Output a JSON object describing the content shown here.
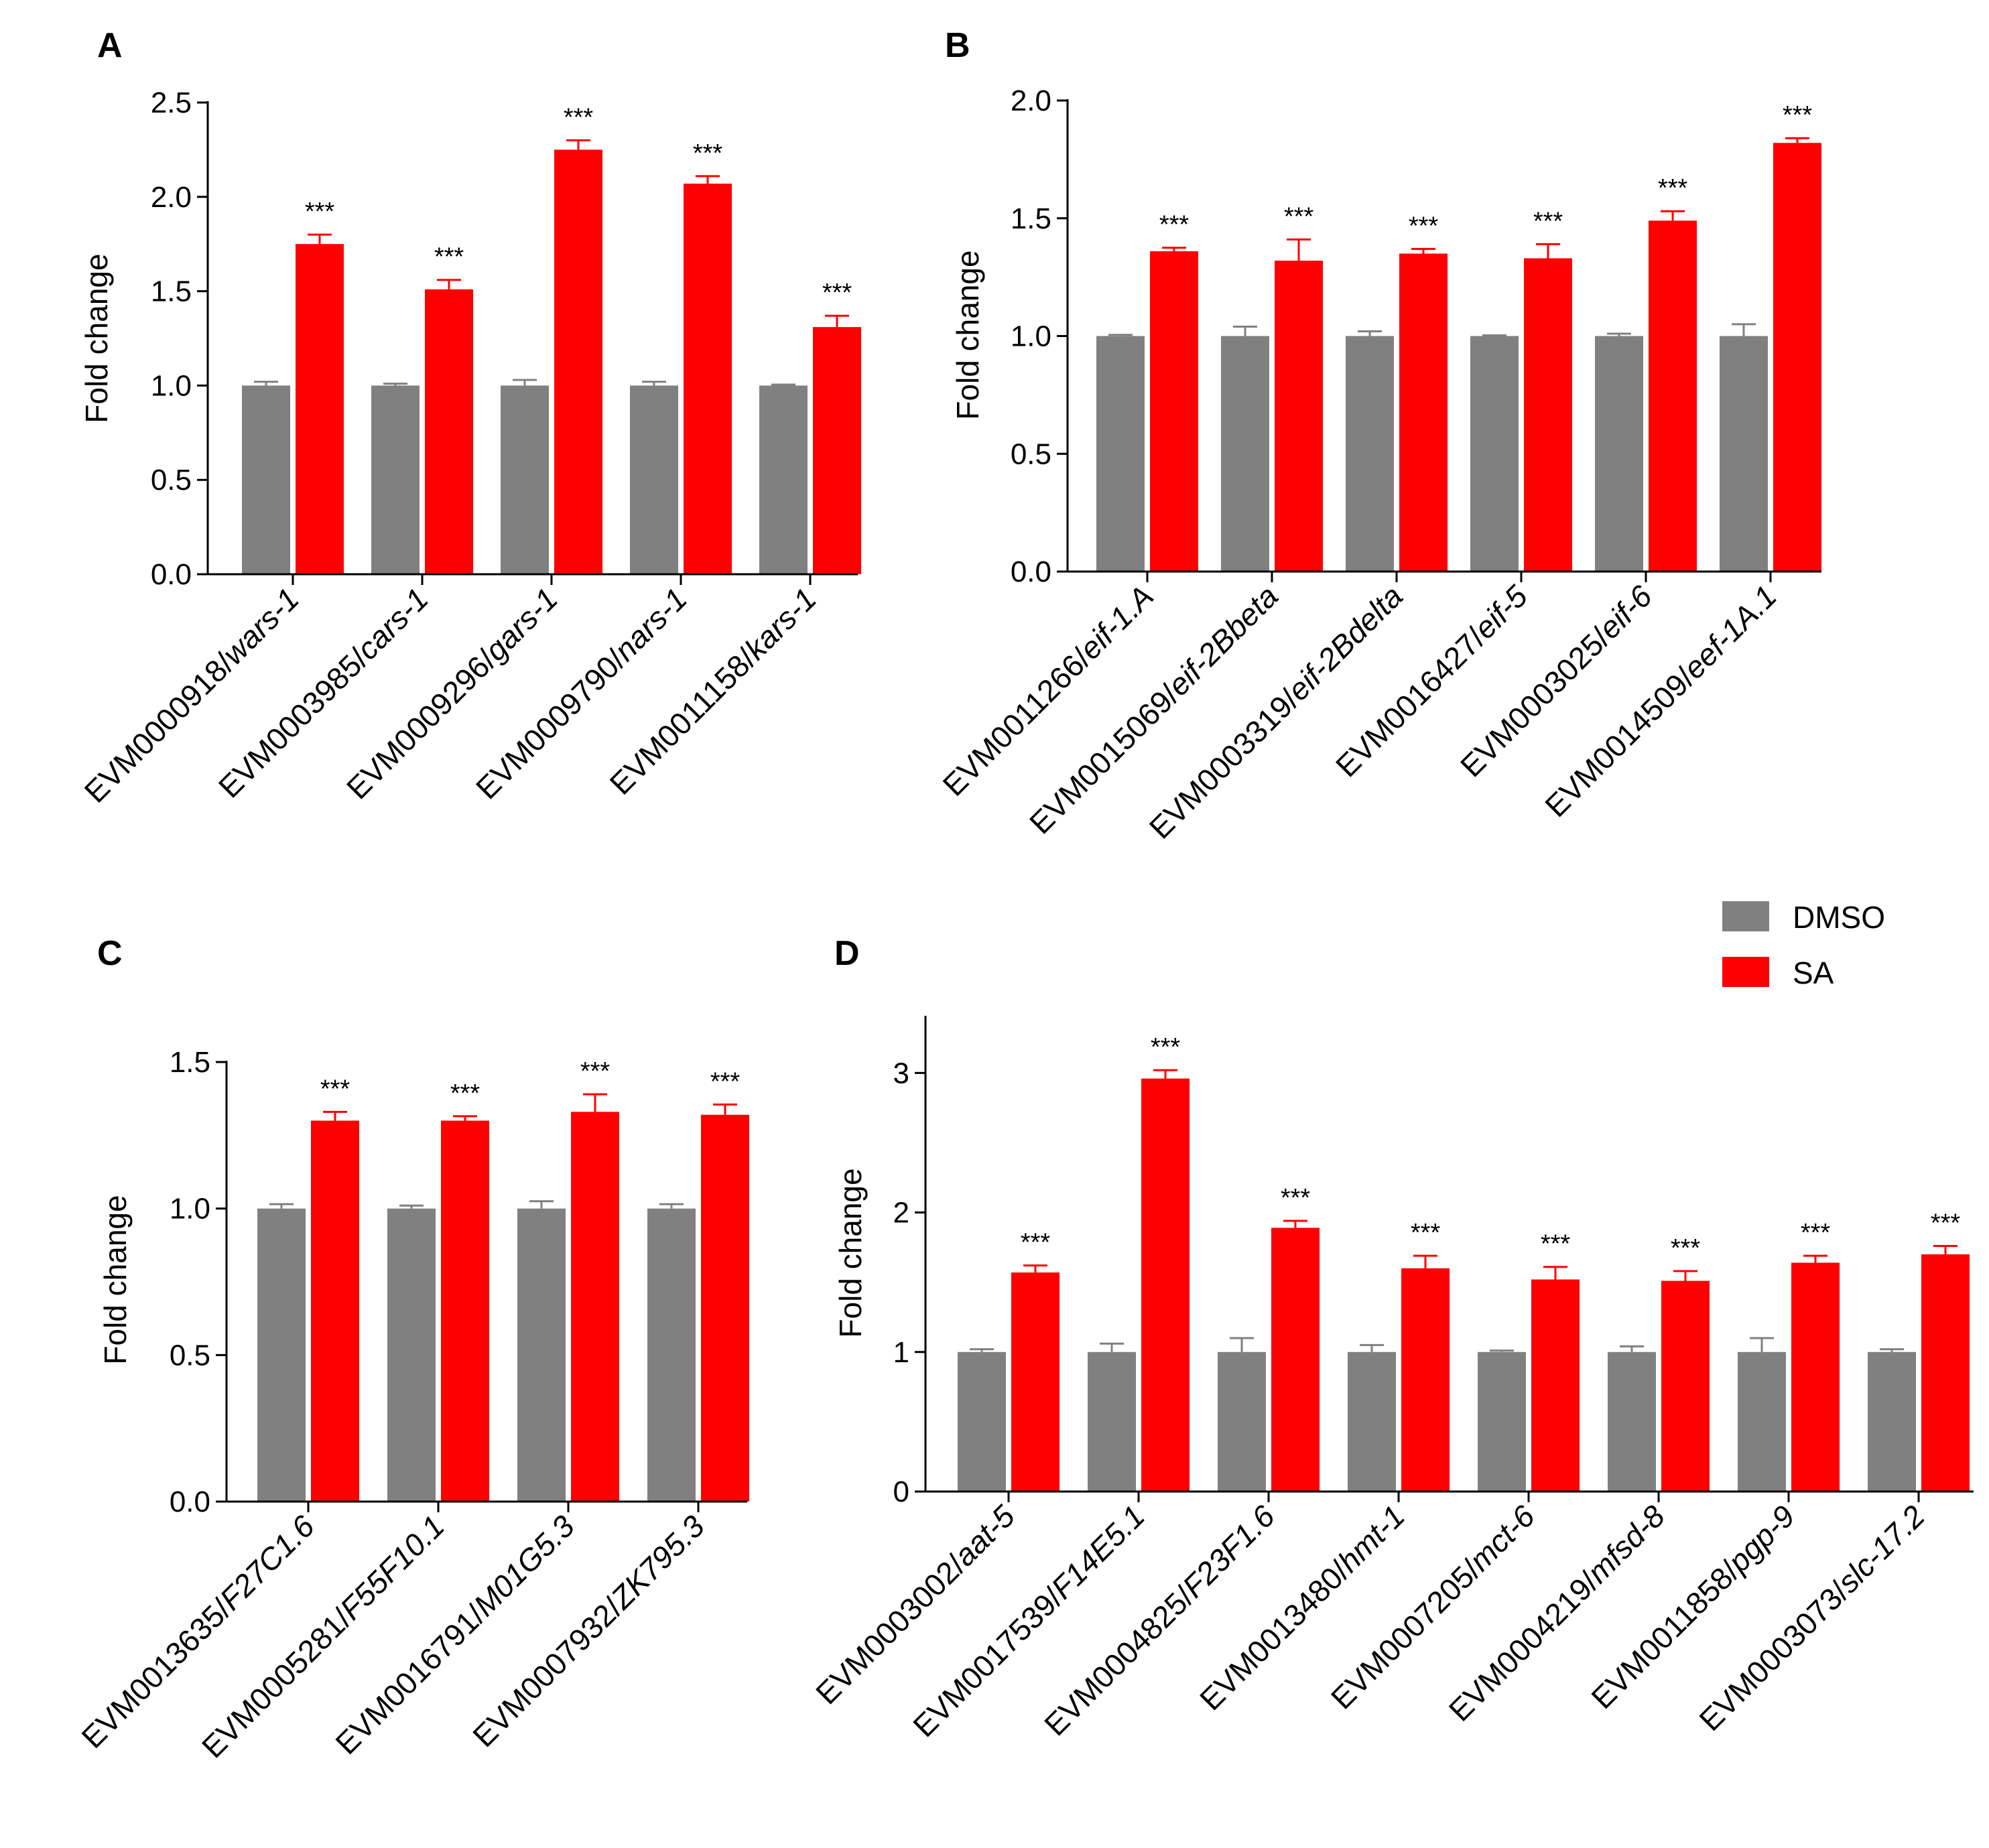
{
  "colors": {
    "DMSO": "#808080",
    "SA": "#ff0000",
    "axis": "#000000"
  },
  "legend": {
    "position": "right, between top and bottom rows",
    "items": [
      {
        "label": "DMSO",
        "color": "#808080"
      },
      {
        "label": "SA",
        "color": "#ff0000"
      }
    ]
  },
  "chart_data": [
    {
      "panel": "A",
      "type": "bar",
      "ylabel": "Fold change",
      "ylim": [
        0,
        2.5
      ],
      "yticks": [
        "0.0",
        "0.5",
        "1.0",
        "1.5",
        "2.0",
        "2.5"
      ],
      "categories": [
        {
          "id": "EVM0000918/",
          "gene": "wars-1"
        },
        {
          "id": "EVM0003985/",
          "gene": "cars-1"
        },
        {
          "id": "EVM0009296/",
          "gene": "gars-1"
        },
        {
          "id": "EVM0009790/",
          "gene": "nars-1"
        },
        {
          "id": "EVM0011158/",
          "gene": "kars-1"
        }
      ],
      "series": [
        {
          "name": "DMSO",
          "values": [
            1.0,
            1.0,
            1.0,
            1.0,
            1.0
          ],
          "errors": [
            0.02,
            0.01,
            0.03,
            0.02,
            0.005
          ]
        },
        {
          "name": "SA",
          "values": [
            1.75,
            1.51,
            2.25,
            2.07,
            1.31
          ],
          "errors": [
            0.05,
            0.05,
            0.05,
            0.04,
            0.06
          ]
        }
      ],
      "annotations": [
        "***",
        "***",
        "***",
        "***",
        "***"
      ]
    },
    {
      "panel": "B",
      "type": "bar",
      "ylabel": "Fold change",
      "ylim": [
        0,
        2.0
      ],
      "yticks": [
        "0.0",
        "0.5",
        "1.0",
        "1.5",
        "2.0"
      ],
      "categories": [
        {
          "id": "EVM0011266/",
          "gene": "eif-1.A"
        },
        {
          "id": "EVM0015069/",
          "gene": "eif-2Bbeta"
        },
        {
          "id": "EVM0003319/",
          "gene": "eif-2Bdelta"
        },
        {
          "id": "EVM0016427/",
          "gene": "eif-5"
        },
        {
          "id": "EVM0003025/",
          "gene": "eif-6"
        },
        {
          "id": "EVM0014509/",
          "gene": "eef-1A.1"
        }
      ],
      "series": [
        {
          "name": "DMSO",
          "values": [
            1.0,
            1.0,
            1.0,
            1.0,
            1.0,
            1.0
          ],
          "errors": [
            0.005,
            0.04,
            0.02,
            0.003,
            0.01,
            0.05
          ]
        },
        {
          "name": "SA",
          "values": [
            1.36,
            1.32,
            1.35,
            1.33,
            1.49,
            1.82
          ],
          "errors": [
            0.015,
            0.09,
            0.02,
            0.06,
            0.04,
            0.02
          ]
        }
      ],
      "annotations": [
        "***",
        "***",
        "***",
        "***",
        "***",
        "***"
      ]
    },
    {
      "panel": "C",
      "type": "bar",
      "ylabel": "Fold change",
      "ylim": [
        0,
        1.5
      ],
      "yticks": [
        "0.0",
        "0.5",
        "1.0",
        "1.5"
      ],
      "categories": [
        {
          "id": "EVM0013635/",
          "gene": "F27C1.6"
        },
        {
          "id": "EVM0005281/",
          "gene": "F55F10.1"
        },
        {
          "id": "EVM0016791/",
          "gene": "M01G5.3"
        },
        {
          "id": "EVM0007932/",
          "gene": "ZK795.3"
        }
      ],
      "series": [
        {
          "name": "DMSO",
          "values": [
            1.0,
            1.0,
            1.0,
            1.0
          ],
          "errors": [
            0.015,
            0.01,
            0.025,
            0.015
          ]
        },
        {
          "name": "SA",
          "values": [
            1.3,
            1.3,
            1.33,
            1.32
          ],
          "errors": [
            0.03,
            0.015,
            0.06,
            0.035
          ]
        }
      ],
      "annotations": [
        "***",
        "***",
        "***",
        "***"
      ]
    },
    {
      "panel": "D",
      "type": "bar",
      "ylabel": "Fold change",
      "ylim": [
        0,
        3.4
      ],
      "yticks": [
        "0",
        "1",
        "2",
        "3"
      ],
      "categories": [
        {
          "id": "EVM0003002/",
          "gene": "aat-5"
        },
        {
          "id": "EVM0017539/",
          "gene": "F14E5.1"
        },
        {
          "id": "EVM0004825/",
          "gene": "F23F1.6"
        },
        {
          "id": "EVM0013480/",
          "gene": "hmt-1"
        },
        {
          "id": "EVM0007205/",
          "gene": "mct-6"
        },
        {
          "id": "EVM0004219/",
          "gene": "mfsd-8"
        },
        {
          "id": "EVM0011858/",
          "gene": "pgp-9"
        },
        {
          "id": "EVM0003073/",
          "gene": "slc-17.2"
        }
      ],
      "series": [
        {
          "name": "DMSO",
          "values": [
            1.0,
            1.0,
            1.0,
            1.0,
            1.0,
            1.0,
            1.0,
            1.0
          ],
          "errors": [
            0.02,
            0.06,
            0.1,
            0.05,
            0.01,
            0.04,
            0.1,
            0.02
          ]
        },
        {
          "name": "SA",
          "values": [
            1.57,
            2.96,
            1.89,
            1.6,
            1.52,
            1.51,
            1.64,
            1.7
          ],
          "errors": [
            0.05,
            0.06,
            0.05,
            0.09,
            0.09,
            0.07,
            0.05,
            0.06
          ]
        }
      ],
      "annotations": [
        "***",
        "***",
        "***",
        "***",
        "***",
        "***",
        "***",
        "***"
      ]
    }
  ]
}
